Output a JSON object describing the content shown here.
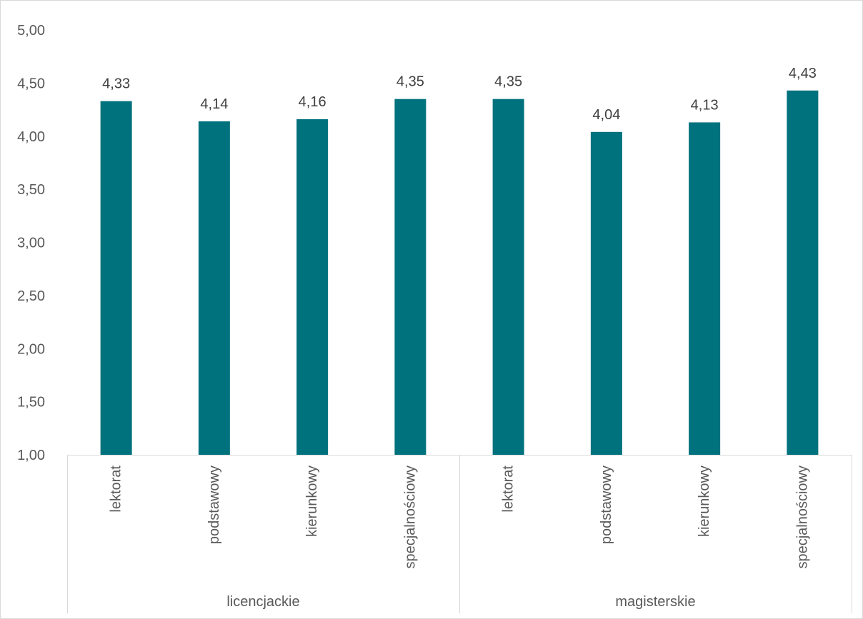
{
  "chart_data": {
    "type": "bar",
    "title": "",
    "xlabel": "",
    "ylabel": "",
    "ylim": [
      1.0,
      5.0
    ],
    "yticks": [
      "1,00",
      "1,50",
      "2,00",
      "2,50",
      "3,00",
      "3,50",
      "4,00",
      "4,50",
      "5,00"
    ],
    "ytick_values": [
      1.0,
      1.5,
      2.0,
      2.5,
      3.0,
      3.5,
      4.0,
      4.5,
      5.0
    ],
    "grid": false,
    "legend": "none",
    "groups": [
      "licencjackie",
      "magisterskie"
    ],
    "categories": [
      "lektorat",
      "podstawowy",
      "kierunkowy",
      "specjalnościowy",
      "lektorat",
      "podstawowy",
      "kierunkowy",
      "specjalnościowy"
    ],
    "category_group": [
      0,
      0,
      0,
      0,
      1,
      1,
      1,
      1
    ],
    "values": [
      4.33,
      4.14,
      4.16,
      4.35,
      4.35,
      4.04,
      4.13,
      4.43
    ],
    "value_labels": [
      "4,33",
      "4,14",
      "4,16",
      "4,35",
      "4,35",
      "4,04",
      "4,13",
      "4,43"
    ],
    "bar_color": "#00727D"
  }
}
